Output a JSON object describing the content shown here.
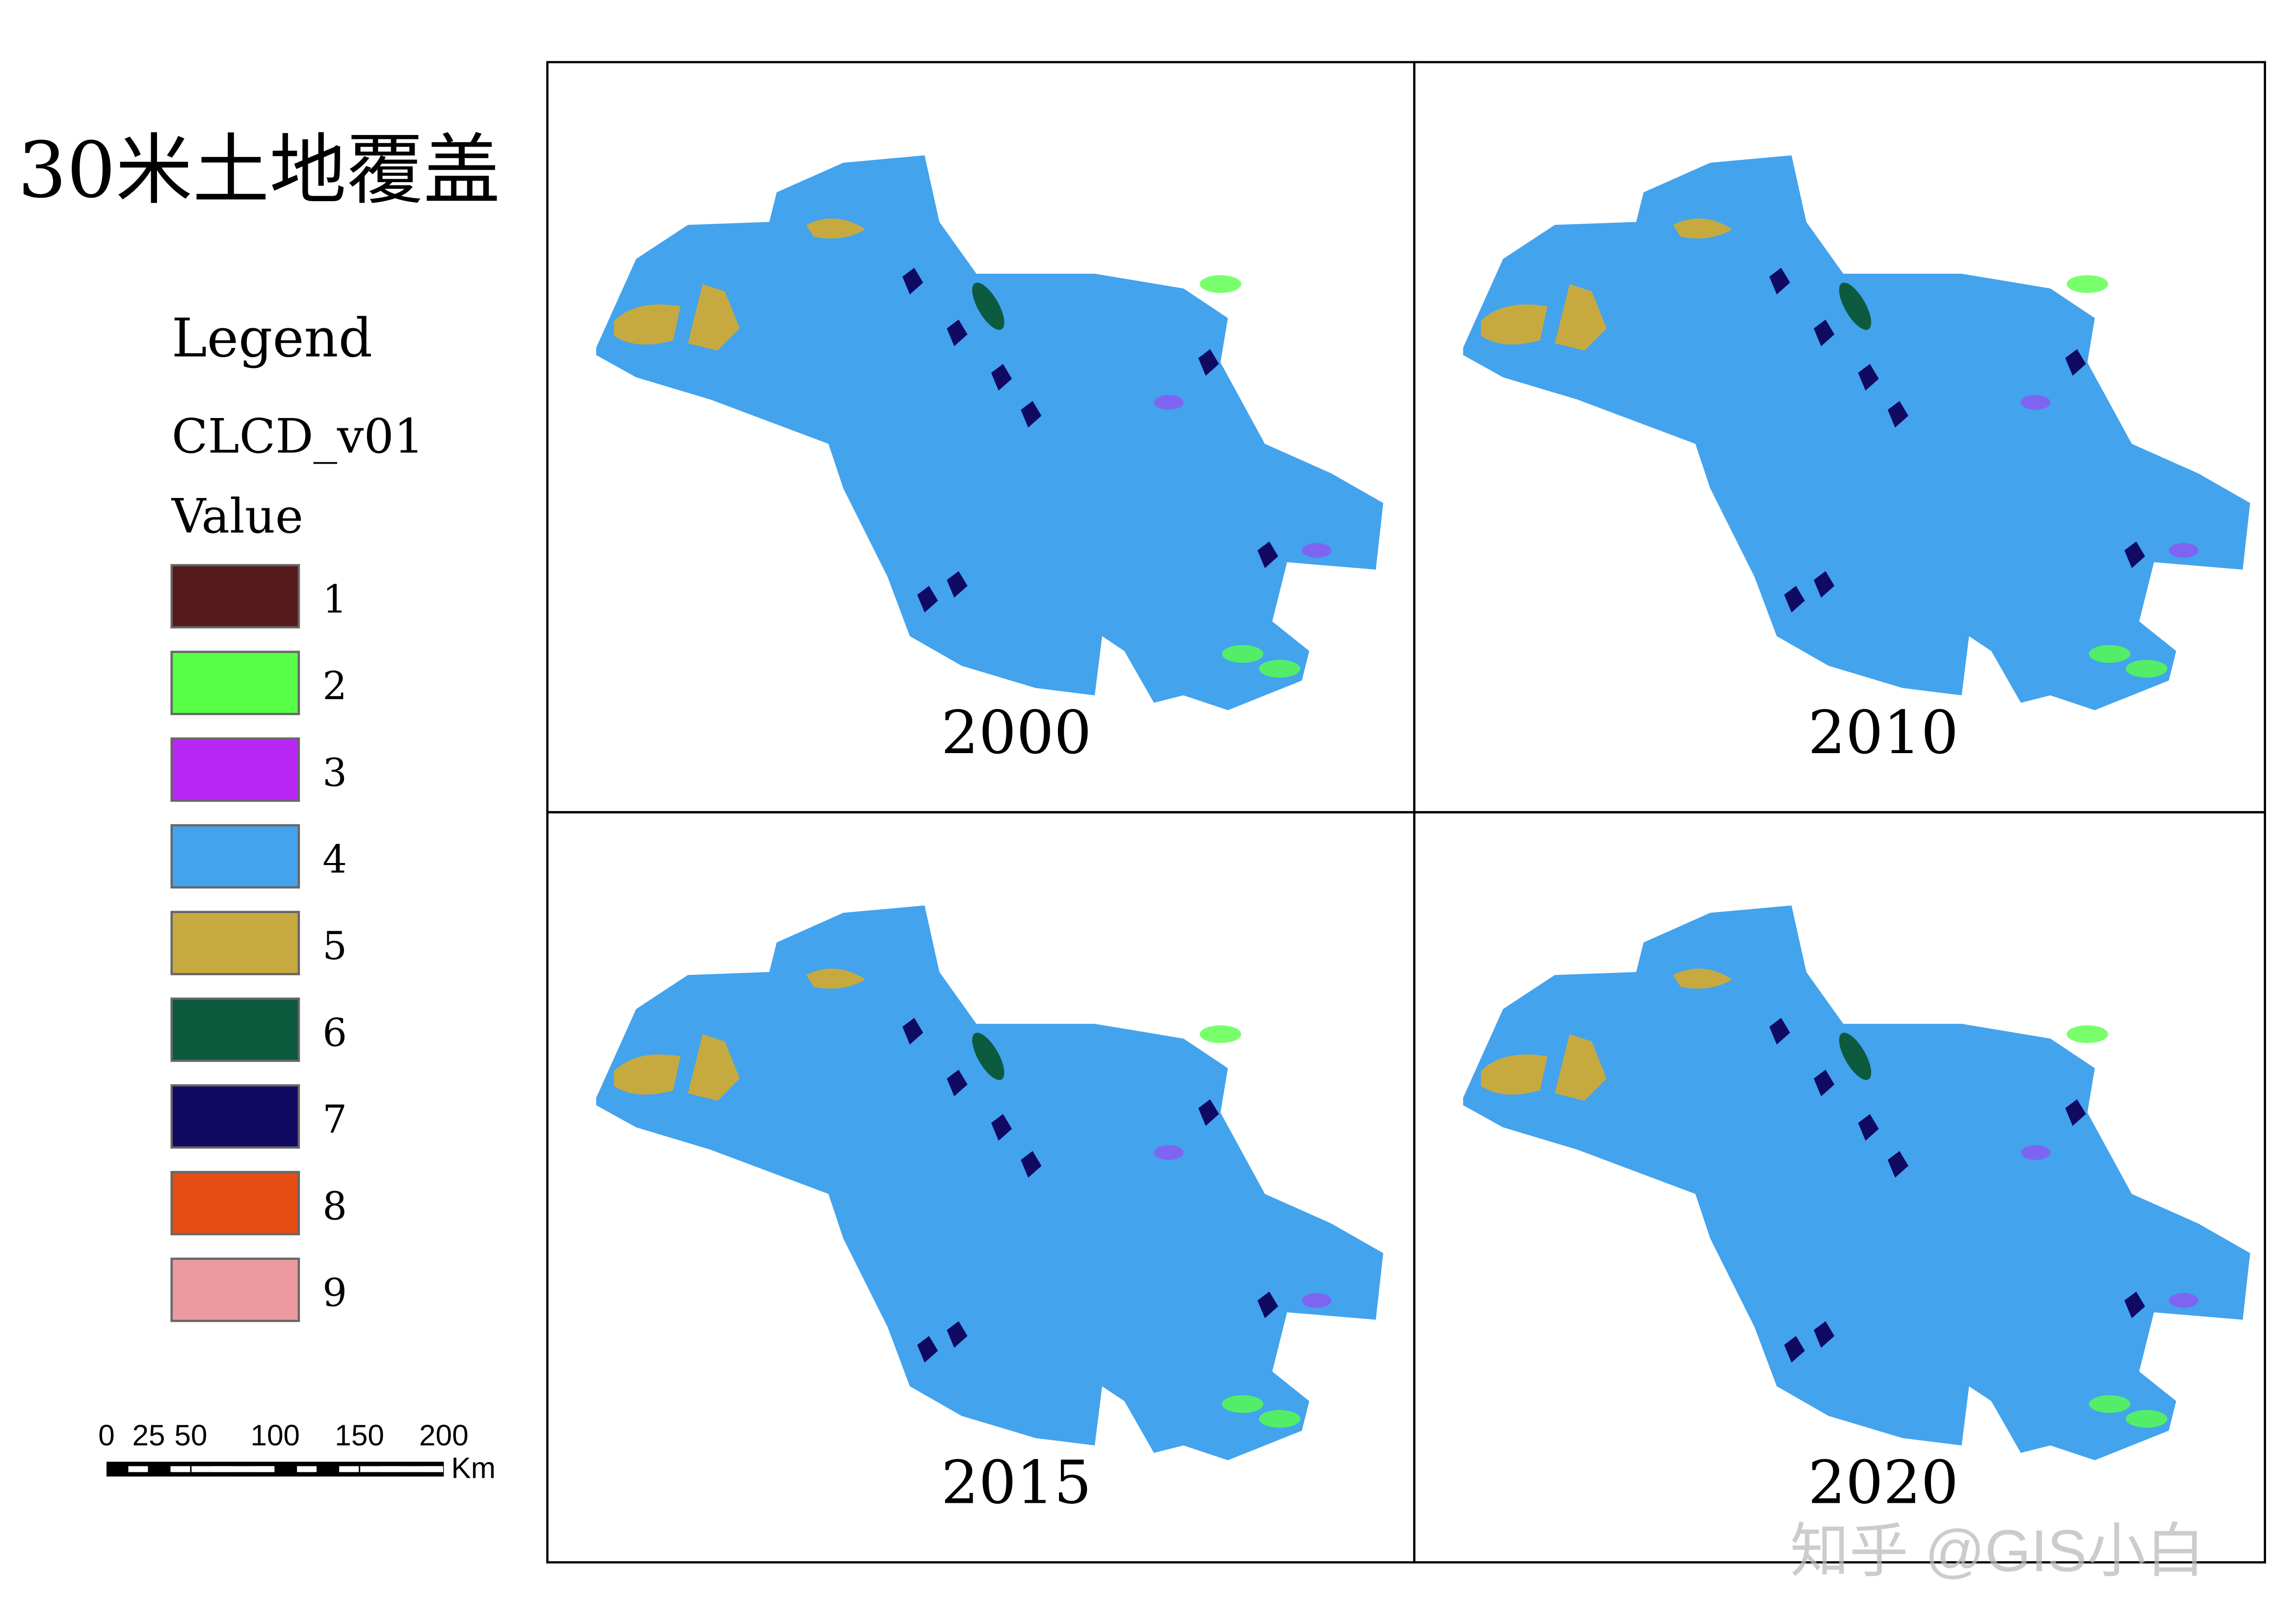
{
  "title": "30米土地覆盖",
  "legend": {
    "title": "Legend",
    "layer": "CLCD_v01",
    "field": "Value",
    "items": [
      {
        "label": 1,
        "color": "#561a1a"
      },
      {
        "label": 2,
        "color": "#57ff47"
      },
      {
        "label": 3,
        "color": "#b927f5"
      },
      {
        "label": 4,
        "color": "#43a3ed"
      },
      {
        "label": 5,
        "color": "#c6aa40"
      },
      {
        "label": 6,
        "color": "#0d5b3f"
      },
      {
        "label": 7,
        "color": "#110a63"
      },
      {
        "label": 8,
        "color": "#e44e12"
      },
      {
        "label": 9,
        "color": "#eb999f"
      }
    ]
  },
  "scalebar": {
    "ticks": [
      0,
      25,
      50,
      100,
      150,
      200
    ],
    "unit": "Km"
  },
  "panels": [
    {
      "year": "2000"
    },
    {
      "year": "2010"
    },
    {
      "year": "2015"
    },
    {
      "year": "2020"
    }
  ],
  "watermark": "知乎 @GIS小白"
}
